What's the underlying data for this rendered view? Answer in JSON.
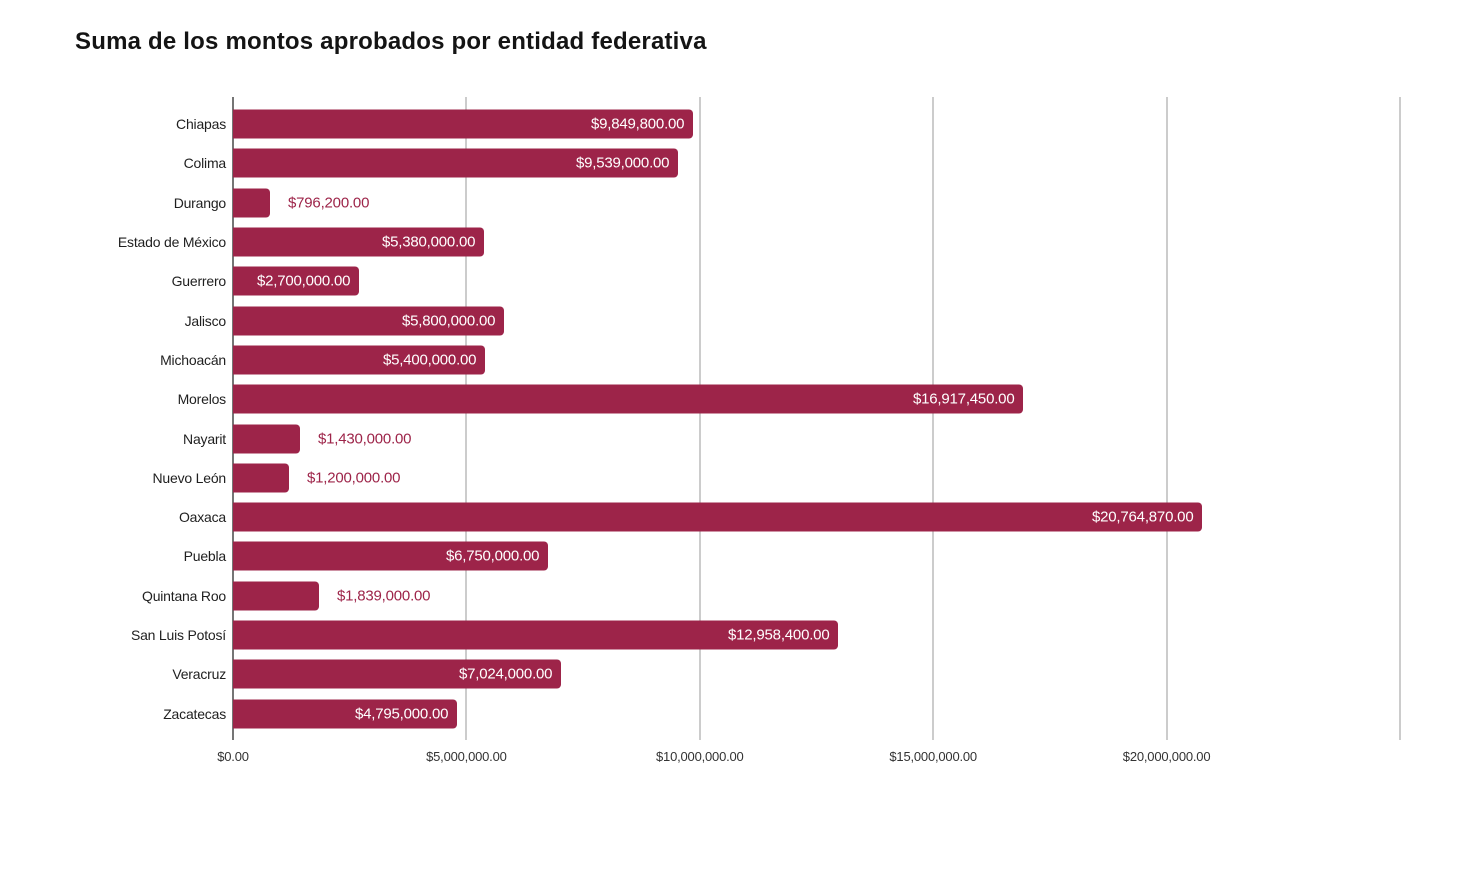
{
  "title": "Suma de los montos aprobados por entidad federativa",
  "chart_data": {
    "type": "bar",
    "orientation": "horizontal",
    "title": "Suma de los montos aprobados por entidad federativa",
    "categories": [
      "Chiapas",
      "Colima",
      "Durango",
      "Estado de México",
      "Guerrero",
      "Jalisco",
      "Michoacán",
      "Morelos",
      "Nayarit",
      "Nuevo León",
      "Oaxaca",
      "Puebla",
      "Quintana Roo",
      "San Luis Potosí",
      "Veracruz",
      "Zacatecas"
    ],
    "values": [
      9849800,
      9539000,
      796200,
      5380000,
      2700000,
      5800000,
      5400000,
      16917450,
      1430000,
      1200000,
      20764870,
      6750000,
      1839000,
      12958400,
      7024000,
      4795000
    ],
    "value_labels": [
      "$9,849,800.00",
      "$9,539,000.00",
      "$796,200.00",
      "$5,380,000.00",
      "$2,700,000.00",
      "$5,800,000.00",
      "$5,400,000.00",
      "$16,917,450.00",
      "$1,430,000.00",
      "$1,200,000.00",
      "$20,764,870.00",
      "$6,750,000.00",
      "$1,839,000.00",
      "$12,958,400.00",
      "$7,024,000.00",
      "$4,795,000.00"
    ],
    "xlabel": "",
    "ylabel": "",
    "xlim": [
      0,
      25000000
    ],
    "x_ticks": [
      {
        "value": 0,
        "label": "$0.00"
      },
      {
        "value": 5000000,
        "label": "$5,000,000.00"
      },
      {
        "value": 10000000,
        "label": "$10,000,000.00"
      },
      {
        "value": 15000000,
        "label": "$15,000,000.00"
      },
      {
        "value": 20000000,
        "label": "$20,000,000.00"
      },
      {
        "value": 25000000,
        "label": ""
      }
    ],
    "grid": true,
    "legend": false,
    "colors": {
      "bar": "#9D2449",
      "grid": "#cccccc",
      "axis": "#757575",
      "inside_label": "#ffffff",
      "outside_label": "#9D2449",
      "tick_text": "#333333",
      "category_text": "#1f1f1f"
    }
  }
}
